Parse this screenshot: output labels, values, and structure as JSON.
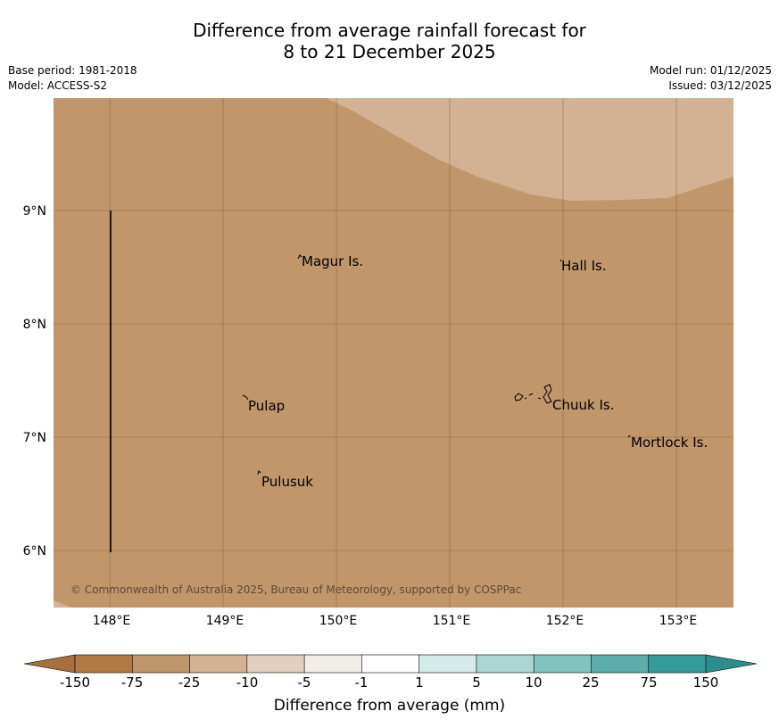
{
  "title": {
    "line1": "Difference from average rainfall forecast for",
    "line2": "8 to 21 December 2025"
  },
  "info": {
    "base_period": "Base period: 1981-2018",
    "model": "Model: ACCESS-S2",
    "model_run": "Model run: 01/12/2025",
    "issued": "Issued: 03/12/2025"
  },
  "map": {
    "lat_labels": [
      "9°N",
      "8°N",
      "7°N",
      "6°N"
    ],
    "lon_labels": [
      "148°E",
      "149°E",
      "150°E",
      "151°E",
      "152°E",
      "153°E"
    ],
    "places": [
      {
        "name": "Magur Is."
      },
      {
        "name": "Hall Is."
      },
      {
        "name": "Pulap"
      },
      {
        "name": "Chuuk Is."
      },
      {
        "name": "Mortlock Is."
      },
      {
        "name": "Pulusuk"
      }
    ],
    "copyright": "© Commonwealth of Australia 2025, Bureau of Meteorology, supported by COSPPac",
    "colors": {
      "base_fill": "#c1966b",
      "light_fill": "#d2b293",
      "grid": "#7a5a3b"
    }
  },
  "colorbar": {
    "label": "Difference from average (mm)",
    "ticks": [
      "-150",
      "-75",
      "-25",
      "-10",
      "-5",
      "-1",
      "1",
      "5",
      "10",
      "25",
      "75",
      "150"
    ],
    "colors": [
      "#a6703e",
      "#b17a45",
      "#c1966b",
      "#d2b293",
      "#e3cfbd",
      "#f1ede7",
      "#ffffff",
      "#d5ebe9",
      "#acd6d3",
      "#83c3bf",
      "#5aafac",
      "#339b98",
      "#2a8e8b"
    ]
  }
}
